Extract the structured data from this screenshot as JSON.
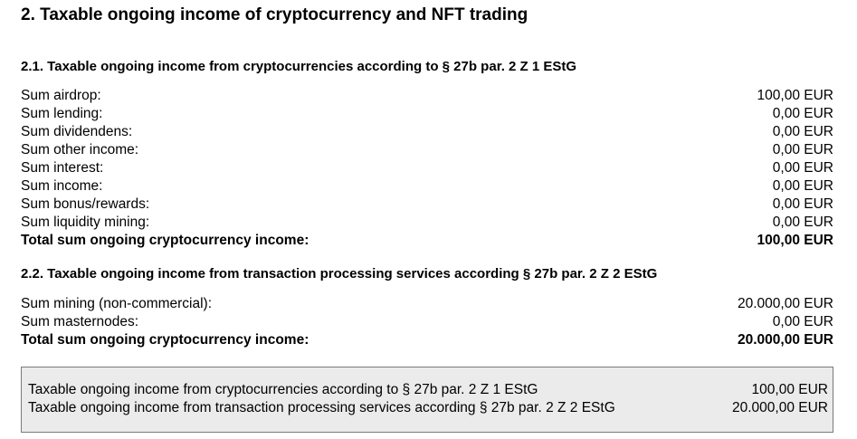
{
  "title": "2. Taxable ongoing income of cryptocurrency and NFT trading",
  "section1": {
    "heading": "2.1. Taxable ongoing income from cryptocurrencies according to § 27b par. 2 Z 1 EStG",
    "rows": [
      {
        "label": "Sum airdrop:",
        "value": "100,00 EUR"
      },
      {
        "label": "Sum lending:",
        "value": "0,00 EUR"
      },
      {
        "label": "Sum dividendens:",
        "value": "0,00 EUR"
      },
      {
        "label": "Sum other income:",
        "value": "0,00 EUR"
      },
      {
        "label": "Sum interest:",
        "value": "0,00 EUR"
      },
      {
        "label": "Sum income:",
        "value": "0,00 EUR"
      },
      {
        "label": "Sum bonus/rewards:",
        "value": "0,00 EUR"
      },
      {
        "label": "Sum liquidity mining:",
        "value": "0,00 EUR"
      }
    ],
    "total": {
      "label": "Total sum ongoing cryptocurrency income:",
      "value": "100,00 EUR"
    }
  },
  "section2": {
    "heading": "2.2. Taxable ongoing income from transaction processing services according § 27b par. 2 Z 2 EStG",
    "rows": [
      {
        "label": "Sum mining (non-commercial):",
        "value": "20.000,00 EUR"
      },
      {
        "label": "Sum masternodes:",
        "value": "0,00 EUR"
      }
    ],
    "total": {
      "label": "Total sum ongoing cryptocurrency income:",
      "value": "20.000,00 EUR"
    }
  },
  "summary": {
    "rows": [
      {
        "label": "Taxable ongoing income from cryptocurrencies according to § 27b par. 2 Z 1 EStG",
        "value": "100,00 EUR"
      },
      {
        "label": "Taxable ongoing income from transaction processing services according § 27b par. 2 Z 2 EStG",
        "value": "20.000,00 EUR"
      }
    ]
  }
}
